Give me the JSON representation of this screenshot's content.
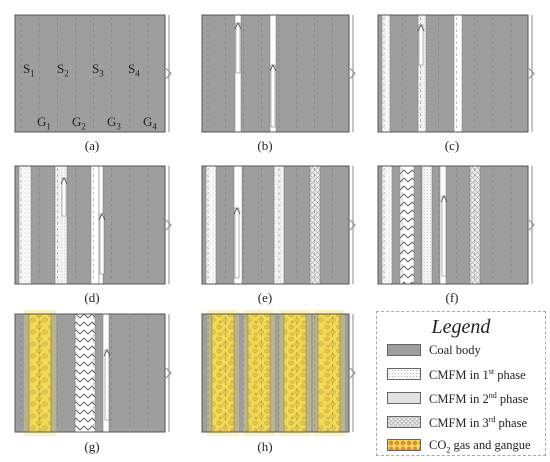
{
  "panels": [
    {
      "id": "a",
      "caption": "(a)"
    },
    {
      "id": "b",
      "caption": "(b)"
    },
    {
      "id": "c",
      "caption": "(c)"
    },
    {
      "id": "d",
      "caption": "(d)"
    },
    {
      "id": "e",
      "caption": "(e)"
    },
    {
      "id": "f",
      "caption": "(f)"
    },
    {
      "id": "g",
      "caption": "(g)"
    },
    {
      "id": "h",
      "caption": "(h)"
    }
  ],
  "labels": {
    "s1": "S",
    "s1_sub": "1",
    "s2": "S",
    "s2_sub": "2",
    "s3": "S",
    "s3_sub": "3",
    "s4": "S",
    "s4_sub": "4",
    "g1": "G",
    "g1_sub": "1",
    "g2": "G",
    "g2_sub": "2",
    "g3": "G",
    "g3_sub": "3",
    "g4": "G",
    "g4_sub": "4"
  },
  "legend": {
    "title": "Legend",
    "items": [
      {
        "key": "coal",
        "pre": "Coal body",
        "sup": "",
        "post": ""
      },
      {
        "key": "p1",
        "pre": "CMFM in 1",
        "sup": "st",
        "post": " phase"
      },
      {
        "key": "p2",
        "pre": "CMFM in 2",
        "sup": "nd",
        "post": " phase"
      },
      {
        "key": "p3",
        "pre": "CMFM  in 3",
        "sup": "rd",
        "post": " phase"
      },
      {
        "key": "gas",
        "pre": "CO",
        "sub": "2",
        "post": " gas and gangue"
      }
    ]
  },
  "colors": {
    "coal": "#9e9e9e",
    "border": "#555555",
    "dashed": "#4a6fb5",
    "gas_yellow": "#f0dc52",
    "gas_orange": "#d98b40"
  }
}
